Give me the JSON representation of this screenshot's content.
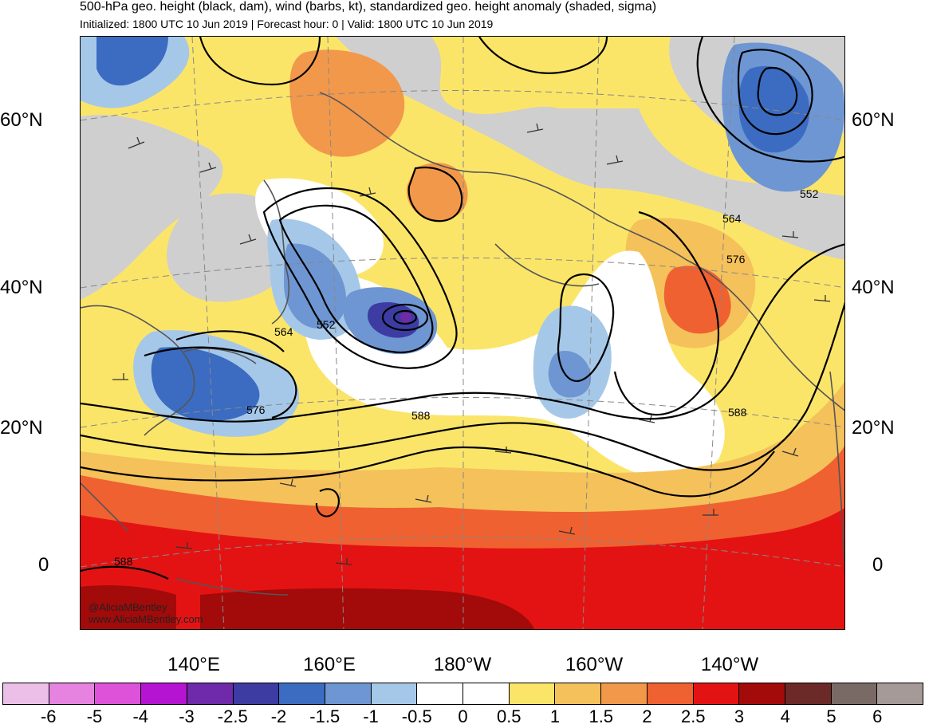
{
  "title": "500-hPa geo. height (black, dam), wind (barbs, kt), standardized geo. height anomaly (shaded, sigma)",
  "subtitle": "Initialized: 1800 UTC 10 Jun 2019 | Forecast hour: 0 | Valid: 1800 UTC 10 Jun 2019",
  "lat_labels": [
    "60°N",
    "40°N",
    "20°N",
    "0"
  ],
  "lon_labels": [
    "140°E",
    "160°E",
    "180°W",
    "160°W",
    "140°W"
  ],
  "contour_labels": {
    "c564w": "564",
    "c552w": "552",
    "c576w": "576",
    "c588c": "588",
    "c588e": "588",
    "c564e": "564",
    "c576e": "576",
    "c552ne": "552",
    "c588sw": "588"
  },
  "credit": {
    "handle": "@AliciaMBentley",
    "site": "www.AliciaMBentley.com"
  },
  "colorbar": {
    "colors": [
      "#ebbfe8",
      "#e683e0",
      "#dc52d8",
      "#b514d2",
      "#6e2aa8",
      "#3c3ca2",
      "#3c6cc1",
      "#6e96d2",
      "#a6c8e8",
      "#ffffff",
      "#ffffff",
      "#fbe569",
      "#f5c15a",
      "#f2984a",
      "#ef6131",
      "#e41313",
      "#a30a0a",
      "#6b2a28",
      "#7a6a66",
      "#a59a97"
    ],
    "labels": [
      "-6",
      "-5",
      "-4",
      "-3",
      "-2.5",
      "-2",
      "-1.5",
      "-1",
      "-0.5",
      "0",
      "0.5",
      "1",
      "1.5",
      "2",
      "2.5",
      "3",
      "4",
      "5",
      "6"
    ]
  },
  "colors": {
    "land_gray": "#cfcfcf",
    "coast": "#555555",
    "contour": "#000000"
  }
}
